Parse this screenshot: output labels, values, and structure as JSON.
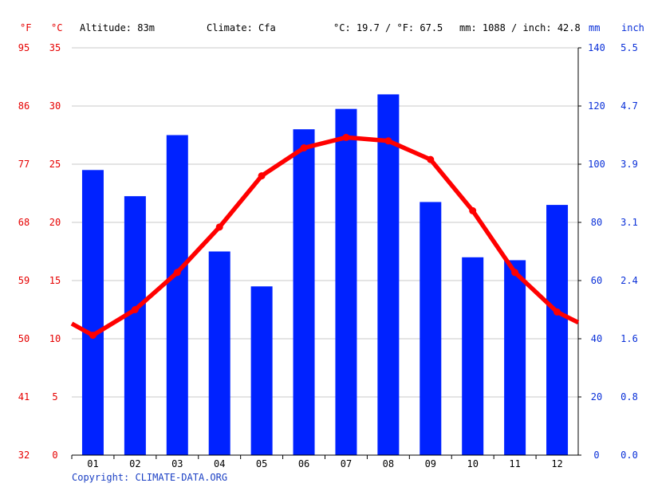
{
  "header": {
    "unit_f": "°F",
    "unit_c": "°C",
    "altitude": "Altitude: 83m",
    "climate": "Climate: Cfa",
    "temp_avg": "°C: 19.7 / °F: 67.5",
    "precip_total": "mm: 1088 / inch: 42.8",
    "unit_mm": "mm",
    "unit_inch": "inch"
  },
  "copyright": "Copyright: CLIMATE-DATA.ORG",
  "colors": {
    "temperature": "#ff0000",
    "precipitation": "#0022ff",
    "left_axis": "#e60000",
    "right_axis": "#0a30d8",
    "grid": "#c8c8c8"
  },
  "chart_data": {
    "type": "bar",
    "categories": [
      "01",
      "02",
      "03",
      "04",
      "05",
      "06",
      "07",
      "08",
      "09",
      "10",
      "11",
      "12"
    ],
    "series": [
      {
        "type": "bar",
        "axis": "mm",
        "values": [
          98,
          89,
          110,
          70,
          58,
          112,
          119,
          124,
          87,
          68,
          67,
          86
        ]
      },
      {
        "type": "line",
        "axis": "celsius",
        "values": [
          10.3,
          12.5,
          15.7,
          19.6,
          24.0,
          26.4,
          27.3,
          27.0,
          25.4,
          21.0,
          15.7,
          12.3
        ]
      }
    ],
    "temp_line_start": 11.3,
    "temp_line_end": 11.4,
    "axes": {
      "celsius": {
        "range": [
          0,
          35
        ],
        "ticks": [
          "0",
          "5",
          "10",
          "15",
          "20",
          "25",
          "30",
          "35"
        ]
      },
      "fahrenheit": {
        "ticks": [
          "32",
          "41",
          "50",
          "59",
          "68",
          "77",
          "86",
          "95"
        ]
      },
      "mm": {
        "range": [
          0,
          140
        ],
        "ticks": [
          "0",
          "20",
          "40",
          "60",
          "80",
          "100",
          "120",
          "140"
        ]
      },
      "inch": {
        "ticks": [
          "0.0",
          "0.8",
          "1.6",
          "2.4",
          "3.1",
          "3.9",
          "4.7",
          "5.5"
        ]
      }
    },
    "grid": true
  }
}
